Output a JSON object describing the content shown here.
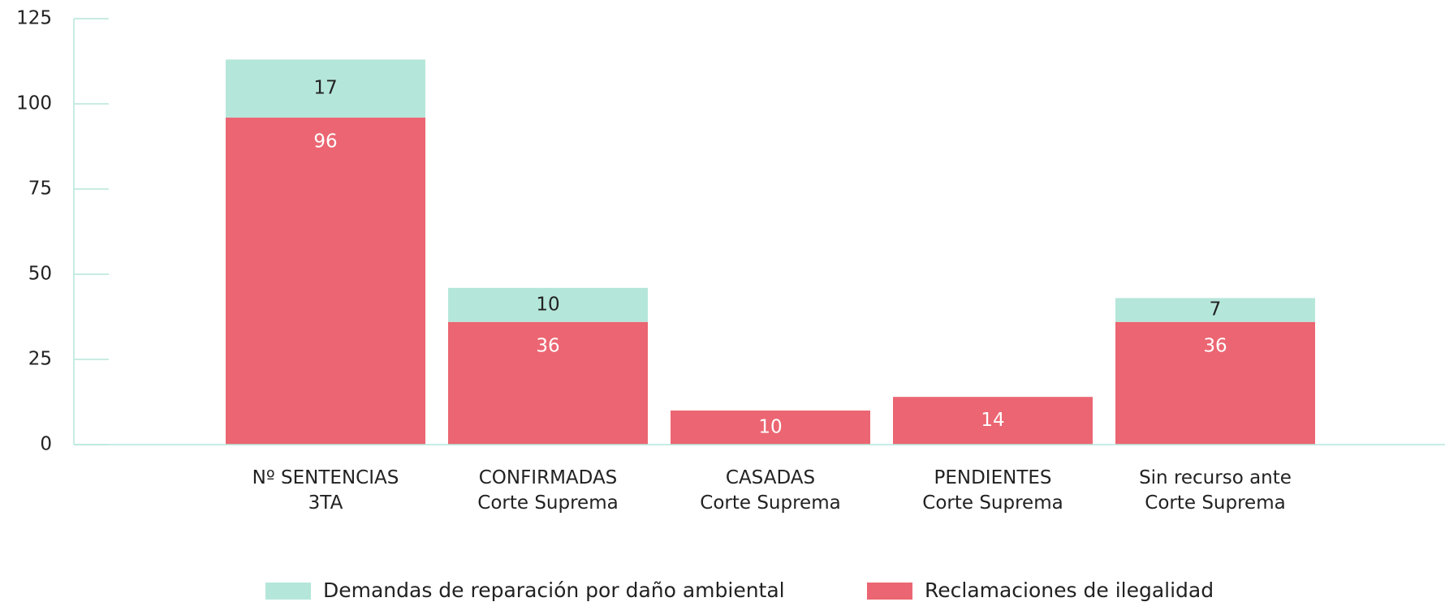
{
  "chart_data": {
    "type": "bar",
    "stacked": true,
    "categories": [
      [
        "Nº SENTENCIAS",
        "3TA"
      ],
      [
        "CONFIRMADAS",
        "Corte Suprema"
      ],
      [
        "CASADAS",
        "Corte Suprema"
      ],
      [
        "PENDIENTES",
        "Corte Suprema"
      ],
      [
        "Sin recurso ante",
        "Corte Suprema"
      ]
    ],
    "series": [
      {
        "name": "Reclamaciones de ilegalidad",
        "color": "#eb6672",
        "label_color": "#ffffff",
        "values": [
          96,
          36,
          10,
          14,
          36
        ]
      },
      {
        "name": "Demandas de reparación por daño ambiental",
        "color": "#b5e6da",
        "label_color": "#222222",
        "values": [
          17,
          10,
          null,
          null,
          7
        ]
      }
    ],
    "legend_order": [
      1,
      0
    ],
    "ylim": [
      0,
      125
    ],
    "yticks": [
      0,
      25,
      50,
      75,
      100,
      125
    ],
    "axis_color": "#b5e6da"
  }
}
